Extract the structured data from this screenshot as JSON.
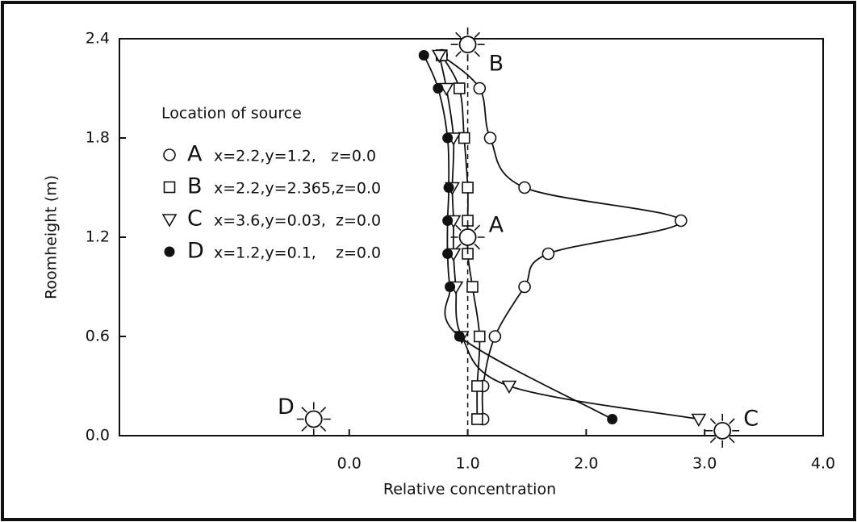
{
  "chart_data": {
    "type": "line",
    "x_label": "Relative concentration",
    "y_label": "Roomheight (m)",
    "xlim": [
      -1.94,
      4.0
    ],
    "ylim": [
      0.0,
      2.4
    ],
    "xticks": [
      {
        "value": 0,
        "label": "0.0"
      },
      {
        "value": 1,
        "label": "1.0"
      },
      {
        "value": 2,
        "label": "2.0"
      },
      {
        "value": 3,
        "label": "3.0"
      },
      {
        "value": 4,
        "label": "4.0"
      }
    ],
    "yticks": [
      {
        "value": 0,
        "label": "0.0"
      },
      {
        "value": 0.6,
        "label": "0.6"
      },
      {
        "value": 1.2,
        "label": "1.2"
      },
      {
        "value": 1.8,
        "label": "1.8"
      },
      {
        "value": 2.4,
        "label": "2.4"
      }
    ],
    "reference_x": 1.0,
    "legend_title": "Location of source",
    "series": [
      {
        "name": "A",
        "description": "x=2.2,y=1.2,   z=0.0",
        "marker": "circle",
        "x": [
          0.78,
          1.1,
          1.19,
          1.48,
          2.8,
          1.68,
          1.48,
          1.23,
          1.13,
          1.13
        ],
        "y": [
          2.3,
          2.1,
          1.8,
          1.5,
          1.3,
          1.1,
          0.9,
          0.6,
          0.3,
          0.1
        ]
      },
      {
        "name": "B",
        "description": "x=2.2,y=2.365,z=0.0",
        "marker": "square",
        "x": [
          0.78,
          0.93,
          0.97,
          1.0,
          1.0,
          1.0,
          1.04,
          1.1,
          1.08,
          1.08
        ],
        "y": [
          2.3,
          2.1,
          1.8,
          1.5,
          1.3,
          1.1,
          0.9,
          0.6,
          0.3,
          0.1
        ]
      },
      {
        "name": "C",
        "description": "x=3.6,y=0.03,  z=0.0",
        "marker": "triangle",
        "x": [
          0.76,
          0.82,
          0.88,
          0.87,
          0.88,
          0.88,
          0.9,
          0.95,
          1.35,
          2.95
        ],
        "y": [
          2.3,
          2.1,
          1.8,
          1.5,
          1.3,
          1.1,
          0.9,
          0.6,
          0.3,
          0.1
        ]
      },
      {
        "name": "D",
        "description": "x=1.2,y=0.1,    z=0.0",
        "marker": "dot",
        "x": [
          0.63,
          0.75,
          0.83,
          0.84,
          0.83,
          0.83,
          0.85,
          0.93,
          2.22
        ],
        "y": [
          2.3,
          2.1,
          1.8,
          1.5,
          1.3,
          1.1,
          0.9,
          0.6,
          0.1
        ]
      }
    ],
    "sources": [
      {
        "label": "A",
        "x": 1.0,
        "y": 1.2
      },
      {
        "label": "B",
        "x": 1.0,
        "y": 2.365
      },
      {
        "label": "C",
        "x": 3.15,
        "y": 0.03
      },
      {
        "label": "D",
        "x": -0.3,
        "y": 0.1
      }
    ]
  }
}
